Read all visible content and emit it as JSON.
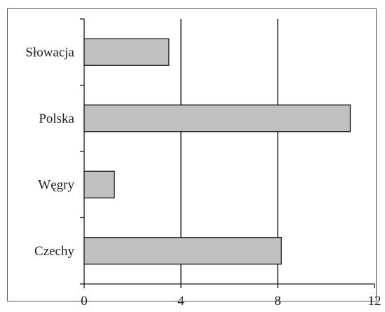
{
  "chart_data": {
    "type": "bar",
    "orientation": "horizontal",
    "categories": [
      "Słowacja",
      "Polska",
      "Węgry",
      "Czechy"
    ],
    "values": [
      3.5,
      11.0,
      1.25,
      8.15
    ],
    "xlim": [
      0,
      12
    ],
    "xticks": [
      0,
      4,
      8,
      12
    ],
    "grid": "vertical",
    "legend": "none",
    "title": "",
    "xlabel": "",
    "ylabel": "",
    "colors": {
      "bar_fill": "#c0c0c0",
      "bar_stroke": "#1a1a1a",
      "axis": "#1a1a1a",
      "grid": "#1a1a1a"
    }
  }
}
